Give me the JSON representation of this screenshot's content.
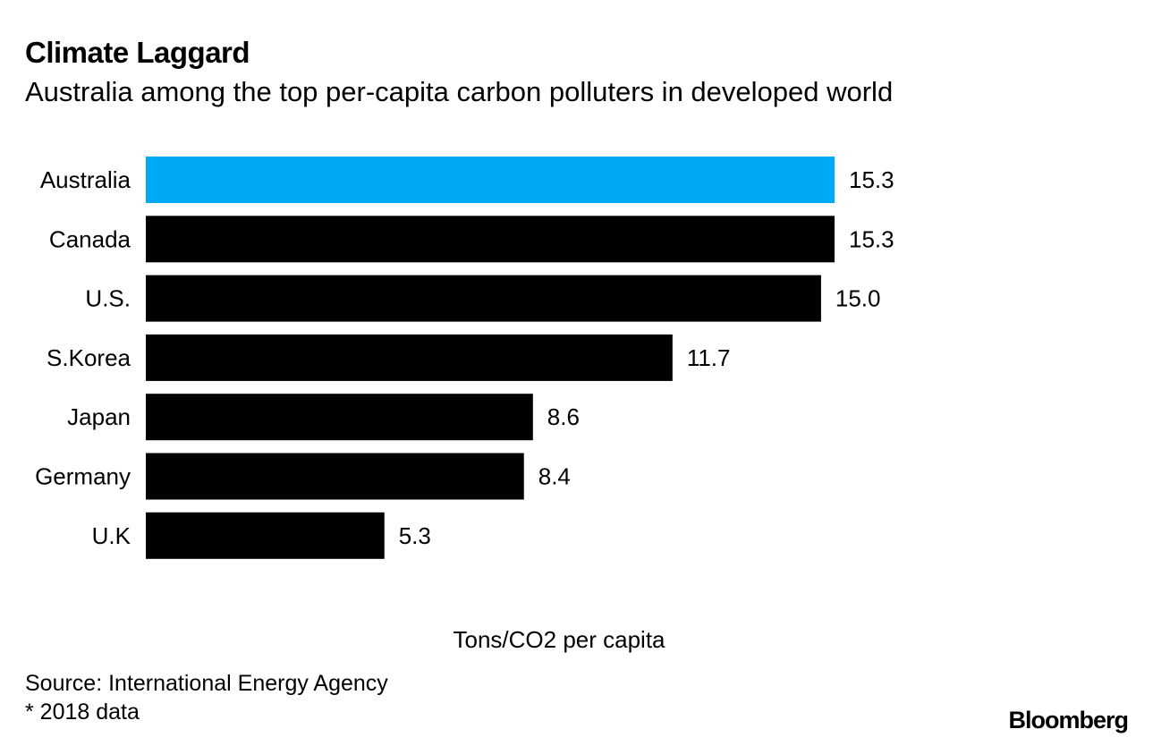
{
  "header": {
    "title": "Climate Laggard",
    "subtitle": "Australia among the top per-capita carbon polluters in developed world"
  },
  "footer": {
    "source": "Source: International Energy Agency",
    "footnote": "* 2018 data",
    "brand": "Bloomberg"
  },
  "colors": {
    "highlight": "#00a9f4",
    "bar": "#000000",
    "text": "#000000",
    "background": "#ffffff"
  },
  "chart_data": {
    "type": "bar",
    "orientation": "horizontal",
    "title": "Climate Laggard",
    "subtitle": "Australia among the top per-capita carbon polluters in developed world",
    "categories": [
      "Australia",
      "Canada",
      "U.S.",
      "S.Korea",
      "Japan",
      "Germany",
      "U.K"
    ],
    "values": [
      15.3,
      15.3,
      15.0,
      11.7,
      8.6,
      8.4,
      5.3
    ],
    "value_labels": [
      "15.3",
      "15.3",
      "15.0",
      "11.7",
      "8.6",
      "8.4",
      "5.3"
    ],
    "highlight_category": "Australia",
    "xlabel": "Tons/CO2 per capita",
    "ylabel": "",
    "xlim": [
      0,
      15.3
    ],
    "grid": false,
    "legend": "none"
  }
}
